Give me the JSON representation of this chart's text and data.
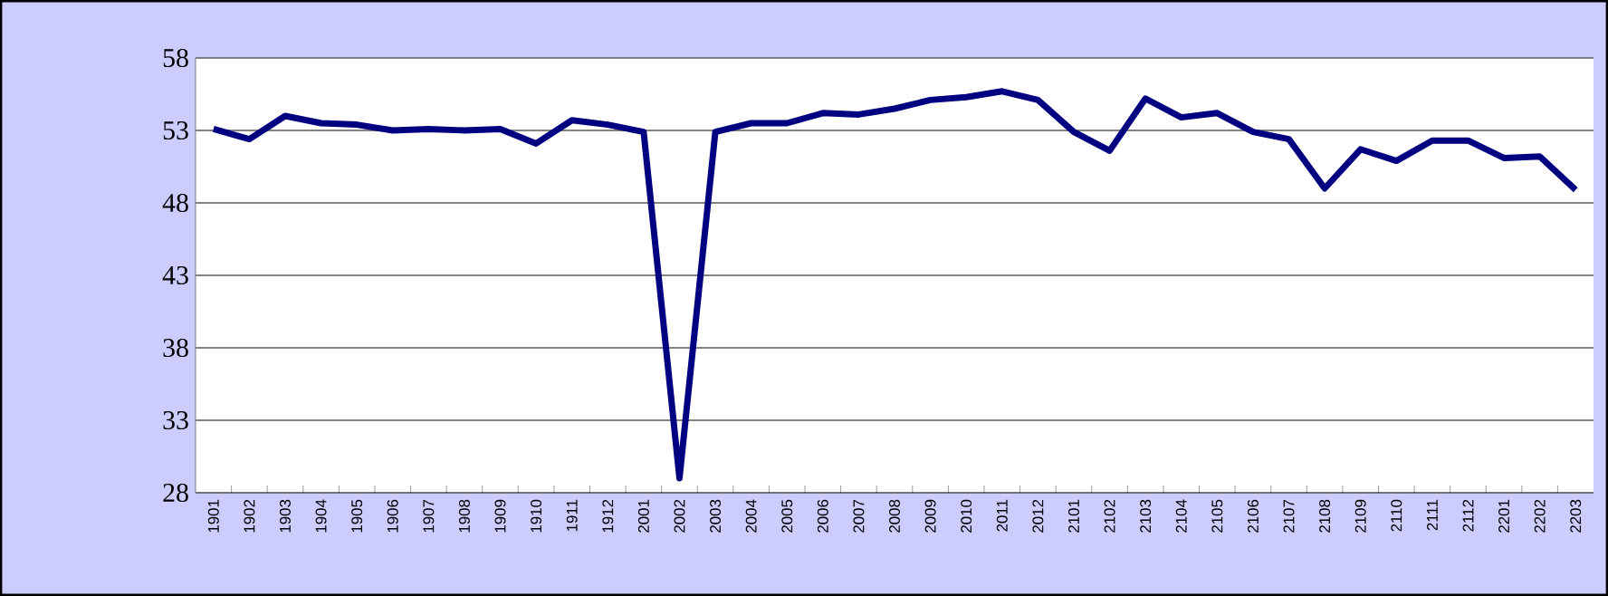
{
  "chart_data": {
    "type": "line",
    "categories": [
      "1901",
      "1902",
      "1903",
      "1904",
      "1905",
      "1906",
      "1907",
      "1908",
      "1909",
      "1910",
      "1911",
      "1912",
      "2001",
      "2002",
      "2003",
      "2004",
      "2005",
      "2006",
      "2007",
      "2008",
      "2009",
      "2010",
      "2011",
      "2012",
      "2101",
      "2102",
      "2103",
      "2104",
      "2105",
      "2106",
      "2107",
      "2108",
      "2109",
      "2110",
      "2111",
      "2112",
      "2201",
      "2202",
      "2203"
    ],
    "values": [
      53.1,
      52.4,
      54.0,
      53.5,
      53.4,
      53.0,
      53.1,
      53.0,
      53.1,
      52.1,
      53.7,
      53.4,
      52.9,
      29.0,
      52.9,
      53.5,
      53.5,
      54.2,
      54.1,
      54.5,
      55.1,
      55.3,
      55.7,
      55.1,
      52.9,
      51.6,
      55.2,
      53.9,
      54.2,
      52.9,
      52.4,
      49.0,
      51.7,
      50.9,
      52.3,
      52.3,
      51.1,
      51.2,
      48.9
    ],
    "color": "#000080",
    "ylim": [
      28,
      58
    ],
    "yticks": [
      28,
      33,
      38,
      43,
      48,
      53,
      58
    ],
    "grid": "y",
    "marker": "none",
    "line_style": "solid"
  }
}
